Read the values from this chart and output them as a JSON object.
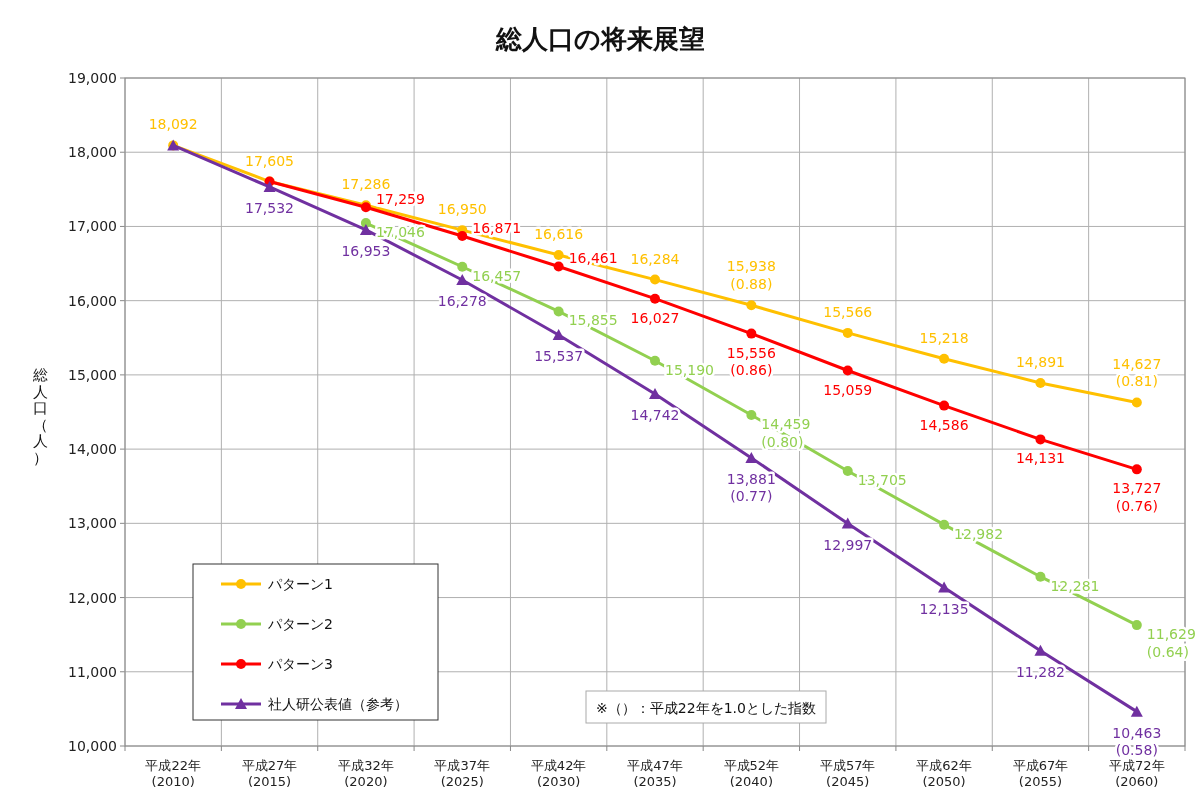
{
  "chart_data": {
    "type": "line",
    "title": "総人口の将来展望",
    "ylabel": "総人口（人）",
    "categories": [
      "平成22年\n(2010)",
      "平成27年\n(2015)",
      "平成32年\n(2020)",
      "平成37年\n(2025)",
      "平成42年\n(2030)",
      "平成47年\n(2035)",
      "平成52年\n(2040)",
      "平成57年\n(2045)",
      "平成62年\n(2050)",
      "平成67年\n(2055)",
      "平成72年\n(2060)"
    ],
    "series": [
      {
        "name": "パターン1",
        "color": "#ffc000",
        "marker": "circle",
        "values": [
          18092,
          17605,
          17286,
          16950,
          16616,
          16284,
          15938,
          15566,
          15218,
          14891,
          14627
        ],
        "value_labels": [
          "18,092",
          "17,605",
          "17,286",
          "16,950",
          "16,616",
          "16,284",
          "15,938\n(0.88)",
          "15,566",
          "15,218",
          "14,891",
          "14,627\n(0.81)"
        ]
      },
      {
        "name": "パターン2",
        "color": "#92d050",
        "marker": "circle",
        "values": [
          null,
          null,
          17046,
          16457,
          15855,
          15190,
          14459,
          13705,
          12982,
          12281,
          11629
        ],
        "value_labels": [
          null,
          null,
          "17,046",
          "16,457",
          "15,855",
          "15,190",
          "14,459\n(0.80)",
          "13,705",
          "12,982",
          "12,281",
          "11,629\n(0.64)"
        ]
      },
      {
        "name": "パターン3",
        "color": "#ff0000",
        "marker": "circle",
        "values": [
          null,
          17605,
          17259,
          16871,
          16461,
          16027,
          15556,
          15059,
          14586,
          14131,
          13727
        ],
        "value_labels": [
          null,
          null,
          "17,259",
          "16,871",
          "16,461",
          "16,027",
          "15,556\n(0.86)",
          "15,059",
          "14,586",
          "14,131",
          "13,727\n(0.76)"
        ]
      },
      {
        "name": "社人研公表値（参考）",
        "color": "#7030a0",
        "marker": "triangle",
        "values": [
          18092,
          17532,
          16953,
          16278,
          15537,
          14742,
          13881,
          12997,
          12135,
          11282,
          10463
        ],
        "value_labels": [
          null,
          "17,532",
          "16,953",
          "16,278",
          "15,537",
          "14,742",
          "13,881\n(0.77)",
          "12,997",
          "12,135",
          "11,282",
          "10,463\n(0.58)"
        ]
      }
    ],
    "ylim": [
      10000,
      19000
    ],
    "yticks": [
      {
        "value": 10000,
        "label": "10,000"
      },
      {
        "value": 11000,
        "label": "11,000"
      },
      {
        "value": 12000,
        "label": "12,000"
      },
      {
        "value": 13000,
        "label": "13,000"
      },
      {
        "value": 14000,
        "label": "14,000"
      },
      {
        "value": 15000,
        "label": "15,000"
      },
      {
        "value": 16000,
        "label": "16,000"
      },
      {
        "value": 17000,
        "label": "17,000"
      },
      {
        "value": 18000,
        "label": "18,000"
      },
      {
        "value": 19000,
        "label": "19,000"
      }
    ],
    "grid": true,
    "legend": "bottom left",
    "line_style": "solid",
    "annotations": [
      "※（）：平成22年を1.0とした指数"
    ]
  }
}
